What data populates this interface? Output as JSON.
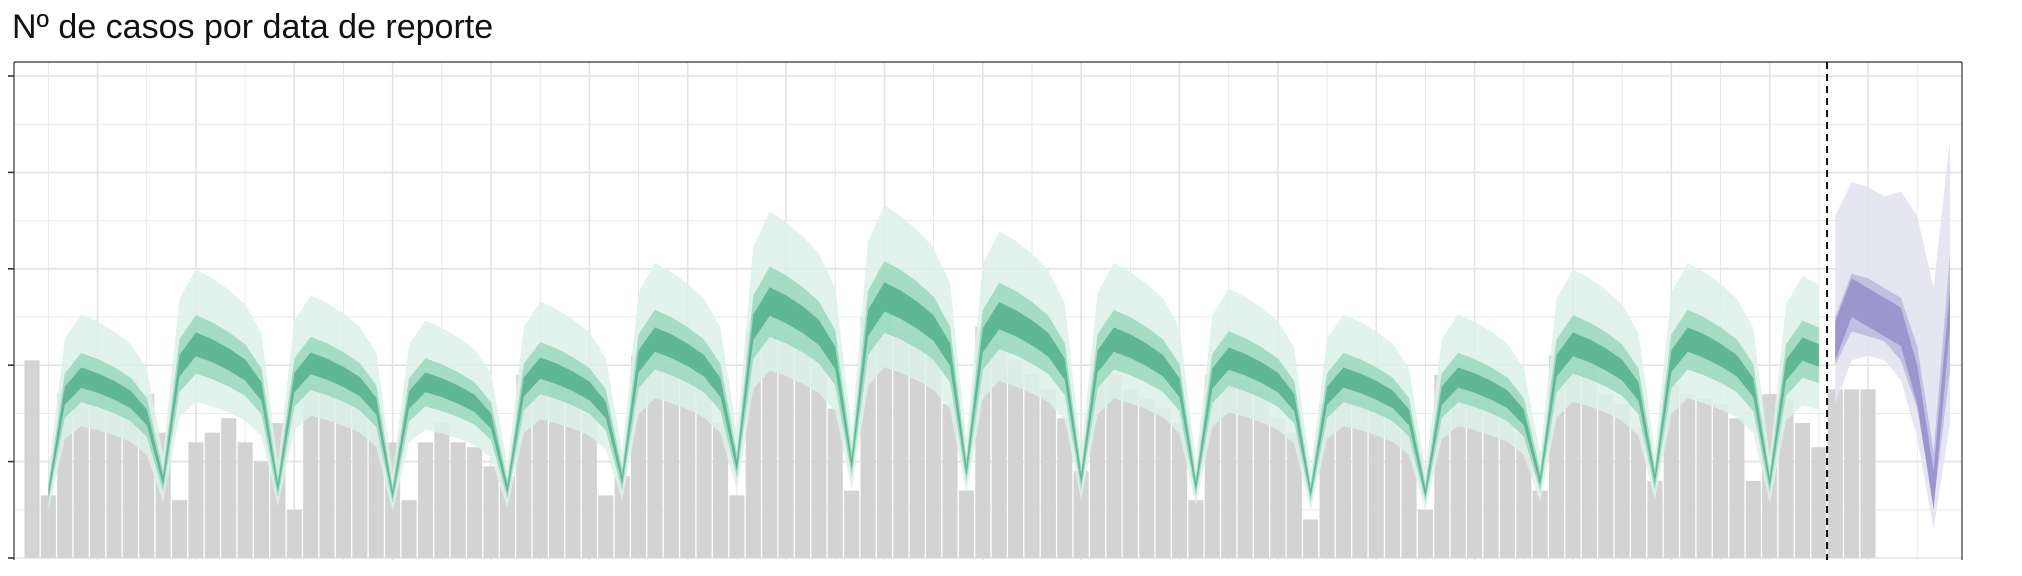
{
  "title": "Nº de casos por data de reporte",
  "colors": {
    "bar": "#d3d3d3",
    "estimate_outer": "#dcf1e9",
    "estimate_mid": "#8fd4b7",
    "estimate_inner": "#4fae8a",
    "forecast_outer": "#e3e2f1",
    "forecast_mid": "#b9b5dc",
    "forecast_inner": "#8a84c4",
    "grid": "#e3e3e3",
    "panel_border": "#333333"
  },
  "chart_data": {
    "type": "bar+ribbon",
    "title": "Nº de casos por data de reporte",
    "xlabel": "",
    "ylabel": "",
    "x_index_range": [
      0,
      117
    ],
    "ylim": [
      0,
      100
    ],
    "grid": true,
    "forecast_start_index": 110,
    "reported_cases": [
      {
        "x": 0,
        "y": 41
      },
      {
        "x": 1,
        "y": 13
      },
      {
        "x": 2,
        "y": 34
      },
      {
        "x": 3,
        "y": 41
      },
      {
        "x": 4,
        "y": 38
      },
      {
        "x": 5,
        "y": 36
      },
      {
        "x": 6,
        "y": 37
      },
      {
        "x": 7,
        "y": 34
      },
      {
        "x": 8,
        "y": 26
      },
      {
        "x": 9,
        "y": 12
      },
      {
        "x": 10,
        "y": 24
      },
      {
        "x": 11,
        "y": 26
      },
      {
        "x": 12,
        "y": 29
      },
      {
        "x": 13,
        "y": 24
      },
      {
        "x": 14,
        "y": 20
      },
      {
        "x": 15,
        "y": 28
      },
      {
        "x": 16,
        "y": 10
      },
      {
        "x": 17,
        "y": 36
      },
      {
        "x": 18,
        "y": 37
      },
      {
        "x": 19,
        "y": 34
      },
      {
        "x": 20,
        "y": 31
      },
      {
        "x": 21,
        "y": 30
      },
      {
        "x": 22,
        "y": 24
      },
      {
        "x": 23,
        "y": 12
      },
      {
        "x": 24,
        "y": 24
      },
      {
        "x": 25,
        "y": 28
      },
      {
        "x": 26,
        "y": 24
      },
      {
        "x": 27,
        "y": 23
      },
      {
        "x": 28,
        "y": 19
      },
      {
        "x": 29,
        "y": 17
      },
      {
        "x": 30,
        "y": 38
      },
      {
        "x": 31,
        "y": 34
      },
      {
        "x": 32,
        "y": 36
      },
      {
        "x": 33,
        "y": 36
      },
      {
        "x": 34,
        "y": 30
      },
      {
        "x": 35,
        "y": 13
      },
      {
        "x": 36,
        "y": 17
      },
      {
        "x": 37,
        "y": 42
      },
      {
        "x": 38,
        "y": 44
      },
      {
        "x": 39,
        "y": 40
      },
      {
        "x": 40,
        "y": 39
      },
      {
        "x": 41,
        "y": 41
      },
      {
        "x": 42,
        "y": 28
      },
      {
        "x": 43,
        "y": 13
      },
      {
        "x": 44,
        "y": 47
      },
      {
        "x": 45,
        "y": 48
      },
      {
        "x": 46,
        "y": 47
      },
      {
        "x": 47,
        "y": 46
      },
      {
        "x": 48,
        "y": 44
      },
      {
        "x": 49,
        "y": 31
      },
      {
        "x": 50,
        "y": 14
      },
      {
        "x": 51,
        "y": 50
      },
      {
        "x": 52,
        "y": 51
      },
      {
        "x": 53,
        "y": 47
      },
      {
        "x": 54,
        "y": 46
      },
      {
        "x": 55,
        "y": 44
      },
      {
        "x": 56,
        "y": 32
      },
      {
        "x": 57,
        "y": 14
      },
      {
        "x": 58,
        "y": 48
      },
      {
        "x": 59,
        "y": 45
      },
      {
        "x": 60,
        "y": 41
      },
      {
        "x": 61,
        "y": 38
      },
      {
        "x": 62,
        "y": 35
      },
      {
        "x": 63,
        "y": 29
      },
      {
        "x": 64,
        "y": 18
      },
      {
        "x": 65,
        "y": 36
      },
      {
        "x": 66,
        "y": 38
      },
      {
        "x": 67,
        "y": 35
      },
      {
        "x": 68,
        "y": 33
      },
      {
        "x": 69,
        "y": 31
      },
      {
        "x": 70,
        "y": 28
      },
      {
        "x": 71,
        "y": 12
      },
      {
        "x": 72,
        "y": 38
      },
      {
        "x": 73,
        "y": 37
      },
      {
        "x": 74,
        "y": 37
      },
      {
        "x": 75,
        "y": 35
      },
      {
        "x": 76,
        "y": 29
      },
      {
        "x": 77,
        "y": 26
      },
      {
        "x": 78,
        "y": 8
      },
      {
        "x": 79,
        "y": 32
      },
      {
        "x": 80,
        "y": 34
      },
      {
        "x": 81,
        "y": 33
      },
      {
        "x": 82,
        "y": 35
      },
      {
        "x": 83,
        "y": 30
      },
      {
        "x": 84,
        "y": 26
      },
      {
        "x": 85,
        "y": 10
      },
      {
        "x": 86,
        "y": 38
      },
      {
        "x": 87,
        "y": 38
      },
      {
        "x": 88,
        "y": 37
      },
      {
        "x": 89,
        "y": 34
      },
      {
        "x": 90,
        "y": 31
      },
      {
        "x": 91,
        "y": 26
      },
      {
        "x": 92,
        "y": 14
      },
      {
        "x": 93,
        "y": 42
      },
      {
        "x": 94,
        "y": 42
      },
      {
        "x": 95,
        "y": 40
      },
      {
        "x": 96,
        "y": 34
      },
      {
        "x": 97,
        "y": 32
      },
      {
        "x": 98,
        "y": 27
      },
      {
        "x": 99,
        "y": 16
      },
      {
        "x": 100,
        "y": 36
      },
      {
        "x": 101,
        "y": 34
      },
      {
        "x": 102,
        "y": 33
      },
      {
        "x": 103,
        "y": 32
      },
      {
        "x": 104,
        "y": 29
      },
      {
        "x": 105,
        "y": 16
      },
      {
        "x": 106,
        "y": 34
      },
      {
        "x": 107,
        "y": 33
      },
      {
        "x": 108,
        "y": 28
      },
      {
        "x": 109,
        "y": 23
      },
      {
        "x": 110,
        "y": 35
      },
      {
        "x": 111,
        "y": 35
      },
      {
        "x": 112,
        "y": 35
      }
    ],
    "estimate": {
      "index_range": [
        1,
        109
      ],
      "cycle_start": 1,
      "cycle_length": 7,
      "cycle_peaks": [
        38,
        45,
        41,
        37,
        40,
        46,
        54,
        55,
        51,
        46,
        42,
        38,
        38,
        45,
        46,
        44,
        47
      ],
      "shape": [
        0.36,
        0.9,
        1.0,
        0.97,
        0.93,
        0.88,
        0.78
      ],
      "bands": [
        {
          "name": "outer",
          "lower_factor": 0.72,
          "upper_factor": 1.33
        },
        {
          "name": "mid",
          "lower_factor": 0.85,
          "upper_factor": 1.12
        },
        {
          "name": "inner",
          "lower_factor": 0.93,
          "upper_factor": 1.04
        }
      ]
    },
    "forecast": {
      "x": [
        110,
        111,
        112,
        113,
        114,
        115,
        116,
        117
      ],
      "median": [
        45,
        54,
        52,
        50,
        48,
        36,
        14,
        52
      ],
      "outer_low": [
        32,
        41,
        42,
        41,
        37,
        25,
        6,
        28
      ],
      "outer_high": [
        71,
        78,
        77,
        75,
        76,
        71,
        56,
        87
      ],
      "mid_low": [
        40,
        47,
        46,
        45,
        41,
        31,
        11,
        39
      ],
      "mid_high": [
        50,
        59,
        58,
        56,
        54,
        44,
        22,
        63
      ]
    }
  }
}
